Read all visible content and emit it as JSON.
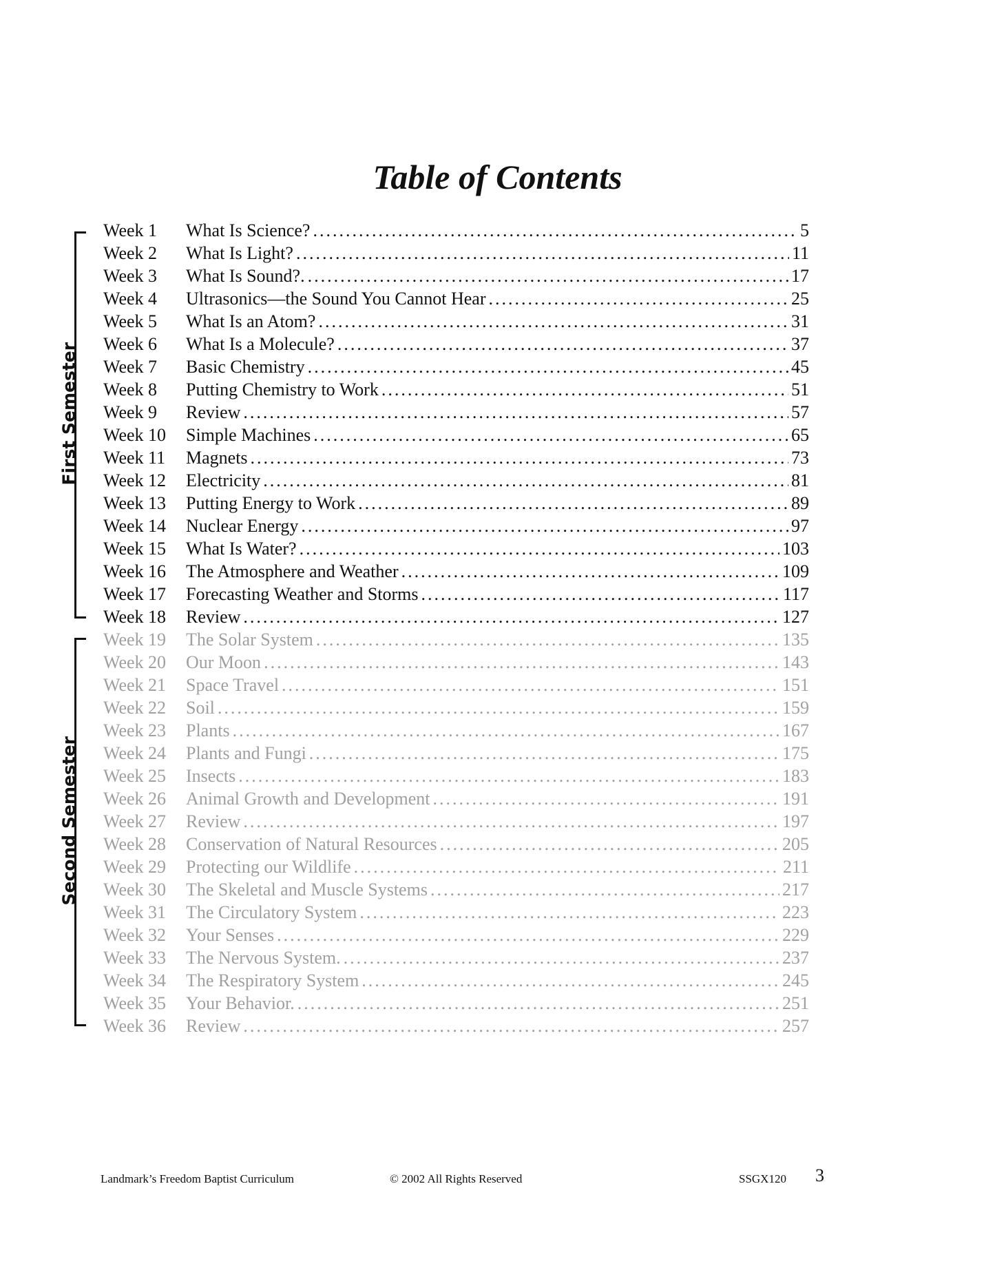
{
  "title": "Table of Contents",
  "semesters": {
    "first": "First Semester",
    "second": "Second Semester"
  },
  "entries": [
    [
      "Week 1",
      "What Is Science?",
      "5"
    ],
    [
      "Week 2",
      "What Is Light?",
      "11"
    ],
    [
      "Week 3",
      "What Is Sound?.",
      "17"
    ],
    [
      "Week 4",
      "Ultrasonics—the Sound You Cannot Hear",
      "25"
    ],
    [
      "Week 5",
      "What Is an Atom?",
      "31"
    ],
    [
      "Week 6",
      "What Is a Molecule?",
      "37"
    ],
    [
      "Week 7",
      "Basic Chemistry",
      "45"
    ],
    [
      "Week 8",
      "Putting Chemistry to Work",
      "51"
    ],
    [
      "Week 9",
      "Review",
      "57"
    ],
    [
      "Week 10",
      "Simple Machines",
      "65"
    ],
    [
      "Week 11",
      "Magnets",
      "73"
    ],
    [
      "Week 12",
      "Electricity",
      "81"
    ],
    [
      "Week 13",
      "Putting Energy to Work",
      "89"
    ],
    [
      "Week 14",
      "Nuclear Energy",
      "97"
    ],
    [
      "Week 15",
      "What Is Water?",
      "103"
    ],
    [
      "Week 16",
      "The Atmosphere and Weather",
      "109"
    ],
    [
      "Week 17",
      "Forecasting Weather and Storms",
      "117"
    ],
    [
      "Week 18",
      "Review",
      "127"
    ],
    [
      "Week 19",
      "The Solar System",
      "135"
    ],
    [
      "Week 20",
      "Our Moon",
      "143"
    ],
    [
      "Week 21",
      "Space Travel",
      "151"
    ],
    [
      "Week 22",
      "Soil",
      "159"
    ],
    [
      "Week 23",
      "Plants",
      "167"
    ],
    [
      "Week 24",
      "Plants and Fungi",
      "175"
    ],
    [
      "Week 25",
      "Insects",
      "183"
    ],
    [
      "Week 26",
      "Animal Growth and Development",
      "191"
    ],
    [
      "Week 27",
      "Review",
      "197"
    ],
    [
      "Week 28",
      "Conservation of Natural Resources",
      "205"
    ],
    [
      "Week 29",
      "Protecting our Wildlife",
      "211"
    ],
    [
      "Week 30",
      "The Skeletal and Muscle Systems",
      "217"
    ],
    [
      "Week 31",
      "The Circulatory System",
      "223"
    ],
    [
      "Week 32",
      "Your Senses",
      "229"
    ],
    [
      "Week 33",
      "The Nervous System.",
      "237"
    ],
    [
      "Week 34",
      "The Respiratory System",
      "245"
    ],
    [
      "Week 35",
      "Your Behavior.",
      "251"
    ],
    [
      "Week 36",
      "Review",
      "257"
    ]
  ],
  "footer": {
    "left": "Landmark’s Freedom Baptist Curriculum",
    "center": "© 2002 All Rights Reserved",
    "code": "SSGX120",
    "page": "3"
  },
  "colors": {
    "first_semester_text": "#111111",
    "second_semester_text": "#a0a0a0"
  }
}
